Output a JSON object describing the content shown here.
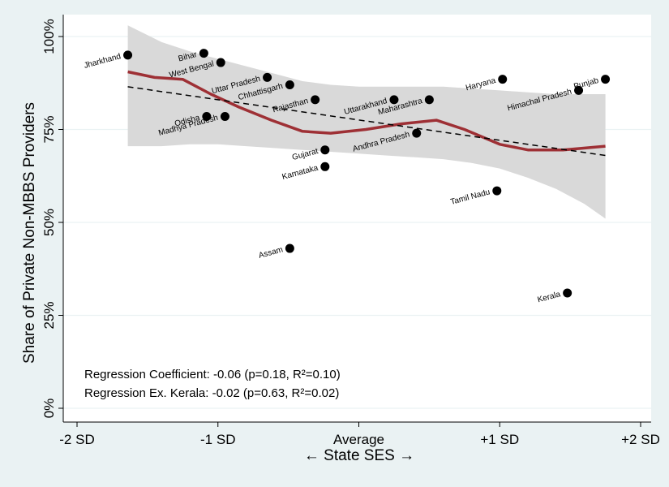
{
  "chart_data": {
    "type": "scatter",
    "xlabel": "← State SES →",
    "ylabel": "Share of Private Non-MBBS Providers",
    "xlim": [
      -2,
      2
    ],
    "ylim": [
      0,
      100
    ],
    "x_ticks": [
      {
        "value": -2,
        "label": "-2 SD"
      },
      {
        "value": -1,
        "label": "-1 SD"
      },
      {
        "value": 0,
        "label": "Average"
      },
      {
        "value": 1,
        "label": "+1 SD"
      },
      {
        "value": 2,
        "label": "+2 SD"
      }
    ],
    "y_ticks": [
      {
        "value": 0,
        "label": "0%"
      },
      {
        "value": 25,
        "label": "25%"
      },
      {
        "value": 50,
        "label": "50%"
      },
      {
        "value": 75,
        "label": "75%"
      },
      {
        "value": 100,
        "label": "100%"
      }
    ],
    "grid": true,
    "points": [
      {
        "label": "Jharkhand",
        "x": -1.64,
        "y": 95
      },
      {
        "label": "Bihar",
        "x": -1.1,
        "y": 95.5
      },
      {
        "label": "West Bengal",
        "x": -0.98,
        "y": 93
      },
      {
        "label": "Uttar Pradesh",
        "x": -0.65,
        "y": 89
      },
      {
        "label": "Chhattisgarh",
        "x": -0.49,
        "y": 87
      },
      {
        "label": "Rajasthan",
        "x": -0.31,
        "y": 83
      },
      {
        "label": "Odisha",
        "x": -1.08,
        "y": 78.5
      },
      {
        "label": "Madhya Pradesh",
        "x": -0.95,
        "y": 78.5
      },
      {
        "label": "Gujarat",
        "x": -0.24,
        "y": 69.5
      },
      {
        "label": "Karnataka",
        "x": -0.24,
        "y": 65
      },
      {
        "label": "Assam",
        "x": -0.49,
        "y": 43
      },
      {
        "label": "Uttarakhand",
        "x": 0.25,
        "y": 83
      },
      {
        "label": "Maharashtra",
        "x": 0.5,
        "y": 83
      },
      {
        "label": "Andhra Pradesh",
        "x": 0.41,
        "y": 74
      },
      {
        "label": "Haryana",
        "x": 1.02,
        "y": 88.5
      },
      {
        "label": "Himachal Pradesh",
        "x": 1.56,
        "y": 85.5
      },
      {
        "label": "Punjab",
        "x": 1.75,
        "y": 88.5
      },
      {
        "label": "Tamil Nadu",
        "x": 0.98,
        "y": 58.5
      },
      {
        "label": "Kerala",
        "x": 1.48,
        "y": 31
      }
    ],
    "lowess_fit": {
      "x": [
        -1.64,
        -1.45,
        -1.25,
        -1.05,
        -0.85,
        -0.62,
        -0.4,
        -0.2,
        0.05,
        0.3,
        0.55,
        0.75,
        1.0,
        1.2,
        1.45,
        1.75
      ],
      "y": [
        90.5,
        89,
        88.5,
        84.5,
        81,
        77.5,
        74.5,
        74,
        75,
        76.5,
        77.5,
        75,
        71,
        69.5,
        69.5,
        70.5
      ]
    },
    "confidence_band": {
      "x": [
        -1.64,
        -1.4,
        -1.2,
        -1.0,
        -0.8,
        -0.6,
        -0.4,
        -0.2,
        0.0,
        0.2,
        0.4,
        0.6,
        0.8,
        1.0,
        1.2,
        1.4,
        1.6,
        1.75
      ],
      "upper": [
        103,
        98.5,
        96,
        94,
        92,
        90,
        88,
        87,
        86.5,
        86.5,
        86.5,
        86.5,
        86,
        85.5,
        85,
        84.5,
        84.5,
        84.5
      ],
      "lower": [
        70.5,
        70.5,
        71,
        71,
        70.5,
        70,
        69.5,
        69,
        68.5,
        68,
        67.5,
        67,
        66,
        64.5,
        62,
        59,
        55,
        51
      ]
    },
    "linear_fit": {
      "x": [
        -1.64,
        1.75
      ],
      "y": [
        86.5,
        68
      ]
    },
    "colors": {
      "background": "#eaf2f3",
      "plot_area": "#ffffff",
      "grid": "#eaf2f3",
      "band": "#d9d9d9",
      "lowess": "#9e3035",
      "points": "#000000",
      "linear": "#000000"
    },
    "annotations": [
      "Regression Coefficient: -0.06 (p=0.18, R²=0.10)",
      "Regression Ex. Kerala: -0.02 (p=0.63, R²=0.02)"
    ]
  }
}
